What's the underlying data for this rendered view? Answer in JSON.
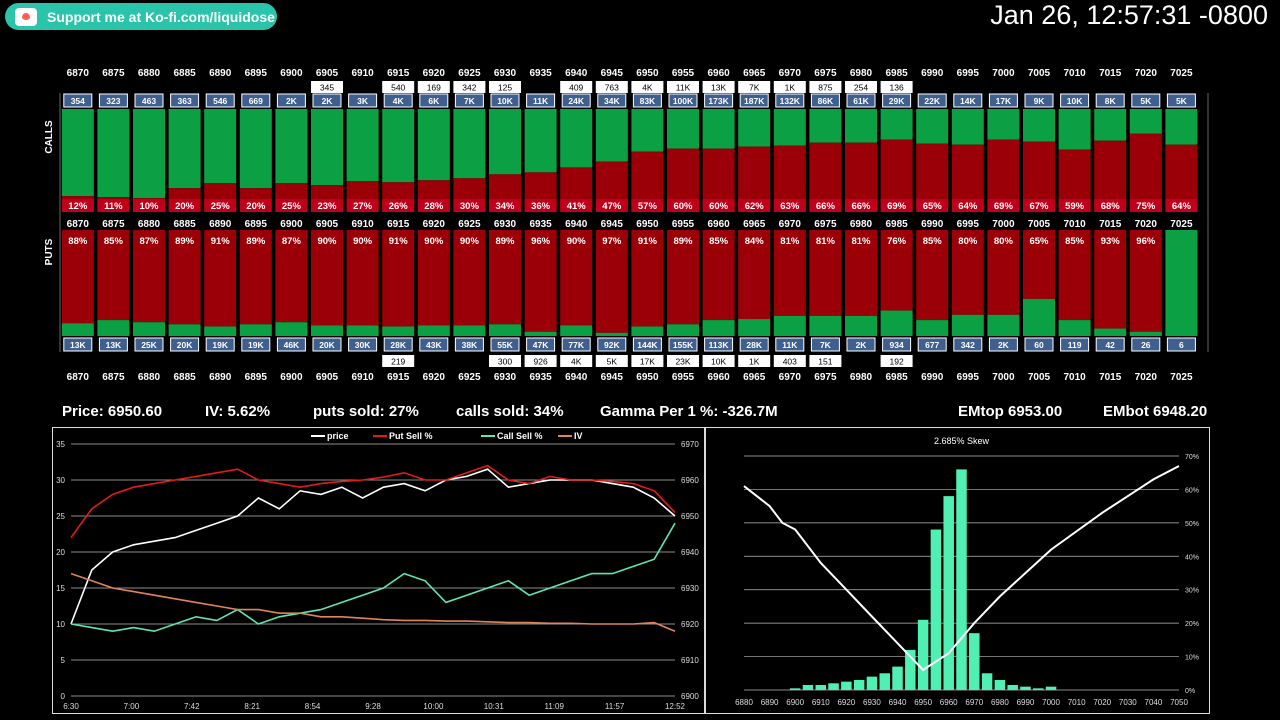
{
  "header": {
    "support_label": "Support me at Ko-fi.com/liquidose",
    "support_icon": "ko-fi-cup-icon",
    "timestamp": "Jan 26, 12:57:31 -0800"
  },
  "colors": {
    "call_green": "#0aa043",
    "put_red": "#9b0008",
    "pct_red": "#c0001a",
    "vol_badge": "#3f5f8f",
    "price": "#ffffff",
    "put_sell": "#e31b1b",
    "call_sell": "#5ee6b0",
    "iv": "#e0845a",
    "skew_bars": "#50f0b2"
  },
  "strikes": [
    "6870",
    "6875",
    "6880",
    "6885",
    "6890",
    "6895",
    "6900",
    "6905",
    "6910",
    "6915",
    "6920",
    "6925",
    "6930",
    "6935",
    "6940",
    "6945",
    "6950",
    "6955",
    "6960",
    "6965",
    "6970",
    "6975",
    "6980",
    "6985",
    "6990",
    "6995",
    "7000",
    "7005",
    "7010",
    "7015",
    "7020",
    "7025"
  ],
  "calls": {
    "label": "CALLS",
    "oi": [
      "354",
      "323",
      "463",
      "363",
      "546",
      "669",
      "2K",
      "2K",
      "3K",
      "4K",
      "6K",
      "7K",
      "10K",
      "11K",
      "24K",
      "34K",
      "83K",
      "100K",
      "173K",
      "187K",
      "132K",
      "86K",
      "61K",
      "29K",
      "22K",
      "14K",
      "17K",
      "9K",
      "10K",
      "8K",
      "5K",
      "5K"
    ],
    "volume": [
      "",
      "",
      "",
      "",
      "",
      "",
      "",
      "345",
      "",
      "540",
      "169",
      "342",
      "125",
      "",
      "409",
      "763",
      "4K",
      "11K",
      "13K",
      "7K",
      "1K",
      "875",
      "254",
      "136",
      "",
      "",
      "",
      "",
      "",
      "",
      "",
      ""
    ],
    "pct": [
      "12%",
      "11%",
      "10%",
      "20%",
      "25%",
      "20%",
      "25%",
      "23%",
      "27%",
      "26%",
      "28%",
      "30%",
      "34%",
      "36%",
      "41%",
      "47%",
      "57%",
      "60%",
      "60%",
      "62%",
      "63%",
      "66%",
      "66%",
      "69%",
      "65%",
      "64%",
      "69%",
      "67%",
      "59%",
      "68%",
      "75%",
      "64%"
    ],
    "pct_values": [
      12,
      11,
      10,
      20,
      25,
      20,
      25,
      23,
      27,
      26,
      28,
      30,
      34,
      36,
      41,
      47,
      57,
      60,
      60,
      62,
      63,
      66,
      66,
      69,
      65,
      64,
      69,
      67,
      59,
      68,
      75,
      64
    ]
  },
  "puts": {
    "label": "PUTS",
    "oi": [
      "13K",
      "13K",
      "25K",
      "20K",
      "19K",
      "19K",
      "46K",
      "20K",
      "30K",
      "28K",
      "43K",
      "38K",
      "55K",
      "47K",
      "77K",
      "92K",
      "144K",
      "155K",
      "113K",
      "28K",
      "11K",
      "7K",
      "2K",
      "934",
      "677",
      "342",
      "2K",
      "60",
      "119",
      "42",
      "26",
      "6"
    ],
    "volume": [
      "",
      "",
      "",
      "",
      "",
      "",
      "",
      "",
      "",
      "219",
      "",
      "",
      "300",
      "926",
      "4K",
      "5K",
      "17K",
      "23K",
      "10K",
      "1K",
      "403",
      "151",
      "",
      "192",
      "",
      "",
      "",
      "",
      "",
      "",
      "",
      ""
    ],
    "pct": [
      "88%",
      "85%",
      "87%",
      "89%",
      "91%",
      "89%",
      "87%",
      "90%",
      "90%",
      "91%",
      "90%",
      "90%",
      "89%",
      "96%",
      "90%",
      "97%",
      "91%",
      "89%",
      "85%",
      "84%",
      "81%",
      "81%",
      "81%",
      "76%",
      "85%",
      "80%",
      "80%",
      "65%",
      "85%",
      "93%",
      "96%",
      ""
    ],
    "pct_values": [
      88,
      85,
      87,
      89,
      91,
      89,
      87,
      90,
      90,
      91,
      90,
      90,
      89,
      96,
      90,
      97,
      91,
      89,
      85,
      84,
      81,
      81,
      81,
      76,
      85,
      80,
      80,
      65,
      85,
      93,
      96,
      0
    ]
  },
  "stats": {
    "price": "Price: 6950.60",
    "iv": "IV: 5.62%",
    "puts_sold": "puts sold: 27%",
    "calls_sold": "calls sold: 34%",
    "gamma": "Gamma Per 1 %:  -326.7M",
    "em_top": "EMtop 6953.00",
    "em_bot": "EMbot 6948.20"
  },
  "chart_data": [
    {
      "type": "line",
      "legend": [
        "price",
        "Put Sell %",
        "Call Sell %",
        "IV"
      ],
      "x_ticks": [
        "6:30",
        "7:00",
        "7:42",
        "8:21",
        "8:54",
        "9:28",
        "10:00",
        "10:31",
        "11:09",
        "11:57",
        "12:52"
      ],
      "y_left_ticks": [
        "0",
        "5",
        "10",
        "15",
        "20",
        "25",
        "30",
        "35"
      ],
      "y_right_ticks": [
        "6900",
        "6910",
        "6920",
        "6930",
        "6940",
        "6950",
        "6960",
        "6970"
      ],
      "ylim_left": [
        0,
        35
      ],
      "ylim_right": [
        6900,
        6970
      ],
      "series": [
        {
          "name": "price",
          "axis": "right",
          "values": [
            6920,
            6935,
            6940,
            6942,
            6943,
            6944,
            6946,
            6948,
            6950,
            6955,
            6952,
            6957,
            6956,
            6958,
            6955,
            6958,
            6959,
            6957,
            6960,
            6961,
            6963,
            6958,
            6959,
            6960,
            6960,
            6960,
            6959,
            6958,
            6955,
            6950
          ]
        },
        {
          "name": "Put Sell %",
          "axis": "left",
          "values": [
            22,
            26,
            28,
            29,
            29.5,
            30,
            30.5,
            31,
            31.5,
            30,
            29.5,
            29,
            29.5,
            29.8,
            30,
            30.4,
            31,
            30,
            30,
            31,
            32,
            30,
            29.5,
            30.5,
            30,
            30,
            29.8,
            29.5,
            28.5,
            25.5
          ]
        },
        {
          "name": "Call Sell %",
          "axis": "left",
          "values": [
            10,
            9.5,
            9,
            9.5,
            9,
            10,
            11,
            10.5,
            12,
            10,
            11,
            11.5,
            12,
            13,
            14,
            15,
            17,
            16,
            13,
            14,
            15,
            16,
            14,
            15,
            16,
            17,
            17,
            18,
            19,
            24
          ]
        },
        {
          "name": "IV",
          "axis": "left",
          "values": [
            17,
            16,
            15,
            14.5,
            14,
            13.5,
            13,
            12.5,
            12,
            12,
            11.5,
            11.5,
            11,
            11,
            10.8,
            10.6,
            10.5,
            10.5,
            10.4,
            10.4,
            10.3,
            10.2,
            10.2,
            10.1,
            10.1,
            10,
            10,
            10,
            10.2,
            9
          ]
        }
      ]
    },
    {
      "type": "bar",
      "title": "2.685% Skew",
      "x_ticks": [
        "6880",
        "6890",
        "6900",
        "6910",
        "6920",
        "6930",
        "6940",
        "6950",
        "6960",
        "6970",
        "6980",
        "6990",
        "7000",
        "7010",
        "7020",
        "7030",
        "7040",
        "7050"
      ],
      "y_right_ticks": [
        "0%",
        "10%",
        "20%",
        "30%",
        "40%",
        "50%",
        "60%",
        "70%"
      ],
      "ylim": [
        0,
        70
      ],
      "bar_x": [
        6900,
        6905,
        6910,
        6915,
        6920,
        6925,
        6930,
        6935,
        6940,
        6945,
        6950,
        6955,
        6960,
        6965,
        6970,
        6975,
        6980,
        6985,
        6990,
        6995,
        7000
      ],
      "bar_values": [
        0.5,
        1.5,
        1.5,
        2,
        2.5,
        3,
        4,
        5,
        7,
        12,
        21,
        48,
        58,
        66,
        17,
        5,
        3,
        1.5,
        1,
        0.5,
        1
      ],
      "skew_line_x": [
        6880,
        6890,
        6895,
        6900,
        6910,
        6920,
        6930,
        6940,
        6950,
        6960,
        6970,
        6980,
        6990,
        7000,
        7020,
        7040,
        7050
      ],
      "skew_line_y": [
        61,
        55,
        50,
        48,
        38,
        30,
        22,
        14,
        6,
        11,
        20,
        28,
        35,
        42,
        53,
        63,
        67
      ]
    }
  ]
}
